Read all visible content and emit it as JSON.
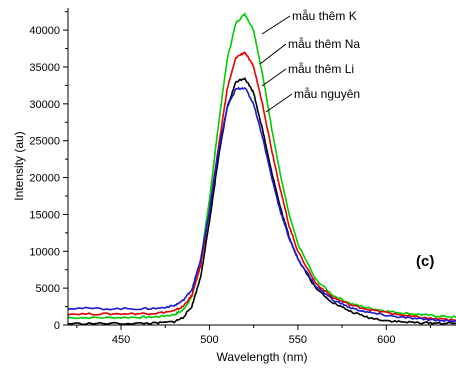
{
  "chart_data": {
    "type": "line",
    "title": "",
    "xlabel": "Wavelength (nm)",
    "ylabel": "Intensity (au)",
    "xlim": [
      420,
      640
    ],
    "ylim": [
      0,
      43000
    ],
    "x_ticks": [
      450,
      500,
      550,
      600
    ],
    "y_ticks": [
      0,
      5000,
      10000,
      15000,
      20000,
      25000,
      30000,
      35000,
      40000
    ],
    "x_tick_labels": [
      "450",
      "500",
      "550",
      "600"
    ],
    "y_tick_labels": [
      "0",
      "5000",
      "10000",
      "15000",
      "20000",
      "25000",
      "30000",
      "35000",
      "40000"
    ],
    "grid": false,
    "panel_label": "(c)",
    "series": [
      {
        "name": "mẫu thêm K",
        "color": "#00cc00",
        "peak": 42200,
        "x": [
          420,
          440,
          460,
          470,
          480,
          485,
          490,
          495,
          500,
          505,
          510,
          515,
          520,
          525,
          530,
          535,
          540,
          545,
          550,
          560,
          570,
          580,
          590,
          600,
          610,
          620,
          630,
          640
        ],
        "y": [
          1000,
          1000,
          1050,
          1100,
          1400,
          2000,
          3800,
          8500,
          17000,
          27000,
          36000,
          41000,
          42200,
          40000,
          34000,
          27000,
          20500,
          15000,
          11000,
          6200,
          4000,
          2900,
          2300,
          1900,
          1600,
          1400,
          1200,
          1050
        ]
      },
      {
        "name": "mẫu thêm Na",
        "color": "#e60000",
        "peak": 37000,
        "x": [
          420,
          440,
          460,
          470,
          480,
          485,
          490,
          495,
          500,
          505,
          510,
          515,
          520,
          525,
          530,
          535,
          540,
          545,
          550,
          560,
          570,
          580,
          590,
          600,
          610,
          620,
          630,
          640
        ],
        "y": [
          1500,
          1500,
          1550,
          1600,
          1900,
          2500,
          4000,
          8000,
          15500,
          24000,
          32000,
          36300,
          37000,
          35000,
          30000,
          24000,
          18500,
          13500,
          10000,
          5700,
          3700,
          2700,
          2100,
          1700,
          1300,
          1000,
          800,
          600
        ]
      },
      {
        "name": "mẫu thêm Li",
        "color": "#000000",
        "peak": 33500,
        "x": [
          420,
          440,
          460,
          470,
          480,
          485,
          490,
          495,
          500,
          505,
          510,
          515,
          520,
          525,
          530,
          535,
          540,
          545,
          550,
          560,
          570,
          580,
          590,
          600,
          610,
          620,
          630,
          640
        ],
        "y": [
          200,
          200,
          220,
          250,
          450,
          1000,
          2500,
          6500,
          14000,
          22500,
          29500,
          33000,
          33500,
          31500,
          26500,
          21000,
          16000,
          12000,
          9000,
          5000,
          3000,
          1800,
          1000,
          600,
          400,
          300,
          250,
          200
        ]
      },
      {
        "name": "mẫu nguyên",
        "color": "#1a1ad6",
        "peak": 32200,
        "x": [
          420,
          440,
          460,
          470,
          480,
          485,
          490,
          495,
          500,
          505,
          510,
          515,
          520,
          525,
          530,
          535,
          540,
          545,
          550,
          560,
          570,
          580,
          590,
          600,
          610,
          620,
          630,
          640
        ],
        "y": [
          2300,
          2200,
          2200,
          2250,
          2600,
          3300,
          4800,
          8800,
          15500,
          23500,
          29500,
          32000,
          32200,
          30000,
          25500,
          20200,
          15500,
          11800,
          9000,
          5300,
          3400,
          2300,
          1700,
          1300,
          1000,
          800,
          650,
          500
        ]
      }
    ]
  }
}
